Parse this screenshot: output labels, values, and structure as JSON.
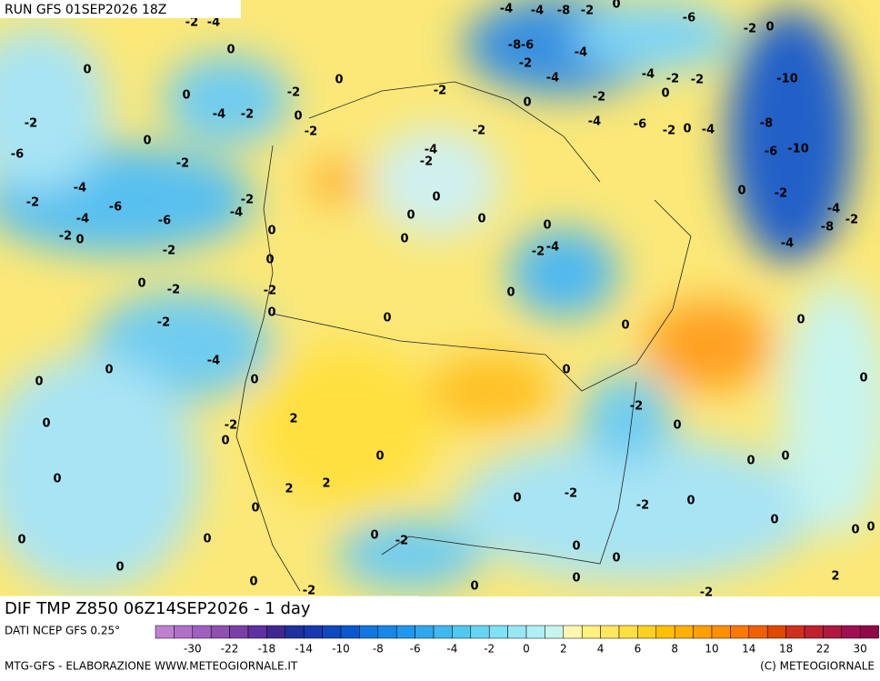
{
  "header": {
    "run": "RUN GFS 01SEP2026 18Z"
  },
  "footer": {
    "title": "DIF TMP Z850 06Z14SEP2026 - 1 day",
    "source": "DATI NCEP GFS 0.25°",
    "credit": "MTG-GFS - ELABORAZIONE WWW.METEOGIORNALE.IT",
    "copyright": "(C) METEOGIORNALE"
  },
  "legend": {
    "ticks": [
      -30,
      -22,
      -18,
      -14,
      -10,
      -8,
      -6,
      -4,
      -2,
      0,
      2,
      4,
      6,
      8,
      10,
      14,
      18,
      22,
      30
    ],
    "colors": [
      "#c080d0",
      "#b070c8",
      "#a060c0",
      "#9050b0",
      "#7a40a8",
      "#6030a0",
      "#402890",
      "#2030a0",
      "#1838b0",
      "#1048c0",
      "#0858d0",
      "#1078e0",
      "#1888e8",
      "#2098f0",
      "#30a8f0",
      "#40b8f0",
      "#50c8f0",
      "#68d4f4",
      "#80e0f4",
      "#98e8f4",
      "#b0f0f4",
      "#c8f4f0",
      "#fff8b0",
      "#fff080",
      "#ffe860",
      "#ffe040",
      "#ffd020",
      "#ffc000",
      "#ffb000",
      "#ffa000",
      "#ff9000",
      "#ff7800",
      "#f06000",
      "#e04800",
      "#d03020",
      "#c02030",
      "#b01840",
      "#a01050",
      "#900848"
    ]
  },
  "map": {
    "contour_labels": [
      -2,
      -4,
      -4,
      -4,
      -8,
      -2,
      0,
      -6,
      -2,
      0,
      0,
      0,
      -8,
      -6,
      -4,
      -2,
      -4,
      -4,
      -2,
      -2,
      -10,
      0,
      -2,
      -2,
      -2,
      0,
      0,
      -2,
      -4,
      -2,
      0,
      -2,
      0,
      -4,
      -6,
      -2,
      0,
      -4,
      -8,
      0,
      -2,
      -6,
      -10,
      -6,
      -2,
      -4,
      -2,
      -4,
      -6,
      -2,
      -4,
      0,
      -2,
      0,
      -4,
      -2,
      -2,
      -4,
      -6,
      0,
      0,
      0,
      -8,
      0,
      -2,
      0,
      0,
      -4,
      -2,
      -2,
      -4,
      0,
      0,
      -2,
      0,
      -2,
      0,
      0,
      -2,
      0,
      0,
      -4,
      0,
      0,
      0,
      0,
      0,
      -2,
      2,
      -2,
      0,
      0,
      0,
      0,
      0,
      0,
      0,
      2,
      2,
      -2,
      0,
      -2,
      0,
      0,
      0,
      0,
      0,
      0,
      0,
      0,
      -2,
      0,
      0,
      0,
      0,
      0,
      0,
      -2,
      -2,
      2,
      0
    ]
  }
}
